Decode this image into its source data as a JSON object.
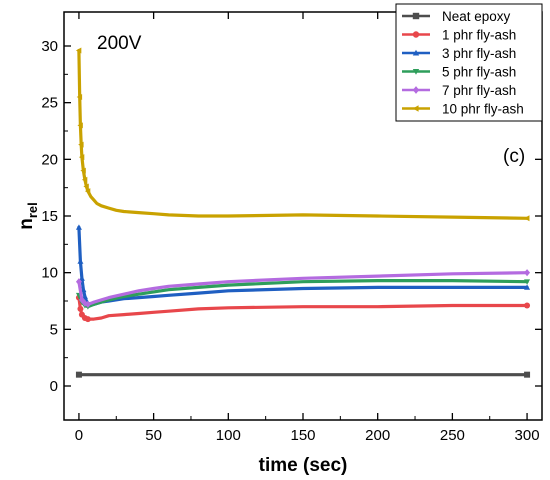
{
  "chart_data": {
    "type": "line",
    "title": "",
    "xlabel": "time (sec)",
    "ylabel": "n",
    "ylabel_subscript": "rel",
    "xlim": [
      -10,
      310
    ],
    "ylim": [
      -3,
      33
    ],
    "xticks": [
      0,
      50,
      100,
      150,
      200,
      250,
      300
    ],
    "yticks": [
      0,
      5,
      10,
      15,
      20,
      25,
      30
    ],
    "grid": false,
    "legend_position": "top-right",
    "annotations": {
      "voltage": "200V",
      "panel": "(c)"
    },
    "series": [
      {
        "name": "Neat epoxy",
        "color": "#4d4d4d",
        "marker": "square",
        "x": [
          0,
          10,
          50,
          100,
          150,
          200,
          250,
          300
        ],
        "y": [
          1.0,
          1.0,
          1.0,
          1.0,
          1.0,
          1.0,
          1.0,
          1.0
        ]
      },
      {
        "name": "1 phr fly-ash",
        "color": "#e8474b",
        "marker": "circle",
        "x": [
          0,
          1,
          2,
          4,
          6,
          8,
          10,
          15,
          20,
          30,
          40,
          50,
          60,
          80,
          100,
          150,
          200,
          250,
          300
        ],
        "y": [
          7.8,
          6.8,
          6.3,
          6.0,
          5.9,
          5.9,
          5.9,
          6.0,
          6.2,
          6.3,
          6.4,
          6.5,
          6.6,
          6.8,
          6.9,
          7.0,
          7.0,
          7.1,
          7.1
        ]
      },
      {
        "name": "3 phr fly-ash",
        "color": "#1f5fc2",
        "marker": "triangle-up",
        "x": [
          0,
          1,
          2,
          3,
          4,
          5,
          6,
          8,
          10,
          15,
          20,
          30,
          40,
          50,
          60,
          80,
          100,
          150,
          200,
          250,
          300
        ],
        "y": [
          14.0,
          11.0,
          9.5,
          8.5,
          7.9,
          7.5,
          7.3,
          7.2,
          7.2,
          7.4,
          7.5,
          7.7,
          7.8,
          7.9,
          8.0,
          8.2,
          8.4,
          8.6,
          8.7,
          8.7,
          8.7
        ]
      },
      {
        "name": "5 phr fly-ash",
        "color": "#2e9e5b",
        "marker": "triangle-down",
        "x": [
          0,
          2,
          4,
          6,
          8,
          10,
          15,
          20,
          30,
          40,
          50,
          60,
          80,
          100,
          150,
          200,
          250,
          300
        ],
        "y": [
          8.0,
          7.4,
          7.1,
          7.0,
          7.1,
          7.2,
          7.4,
          7.6,
          7.9,
          8.1,
          8.3,
          8.5,
          8.7,
          8.9,
          9.2,
          9.3,
          9.3,
          9.2
        ]
      },
      {
        "name": "7 phr fly-ash",
        "color": "#b46be0",
        "marker": "diamond",
        "x": [
          0,
          2,
          4,
          6,
          8,
          10,
          15,
          20,
          30,
          40,
          50,
          60,
          80,
          100,
          150,
          200,
          250,
          300
        ],
        "y": [
          9.2,
          7.6,
          7.3,
          7.2,
          7.3,
          7.4,
          7.6,
          7.8,
          8.1,
          8.4,
          8.6,
          8.8,
          9.0,
          9.2,
          9.5,
          9.7,
          9.9,
          10.0
        ]
      },
      {
        "name": "10 phr fly-ash",
        "color": "#c9a200",
        "marker": "left-triangle",
        "x": [
          0,
          0.5,
          1,
          1.5,
          2,
          3,
          4,
          5,
          6,
          8,
          10,
          12,
          15,
          20,
          25,
          30,
          40,
          50,
          60,
          80,
          100,
          150,
          200,
          250,
          300
        ],
        "y": [
          29.6,
          25.5,
          23.0,
          21.3,
          20.2,
          19.0,
          18.2,
          17.6,
          17.2,
          16.7,
          16.4,
          16.1,
          15.9,
          15.7,
          15.5,
          15.4,
          15.3,
          15.2,
          15.1,
          15.0,
          15.0,
          15.1,
          15.0,
          14.9,
          14.8
        ]
      }
    ]
  }
}
